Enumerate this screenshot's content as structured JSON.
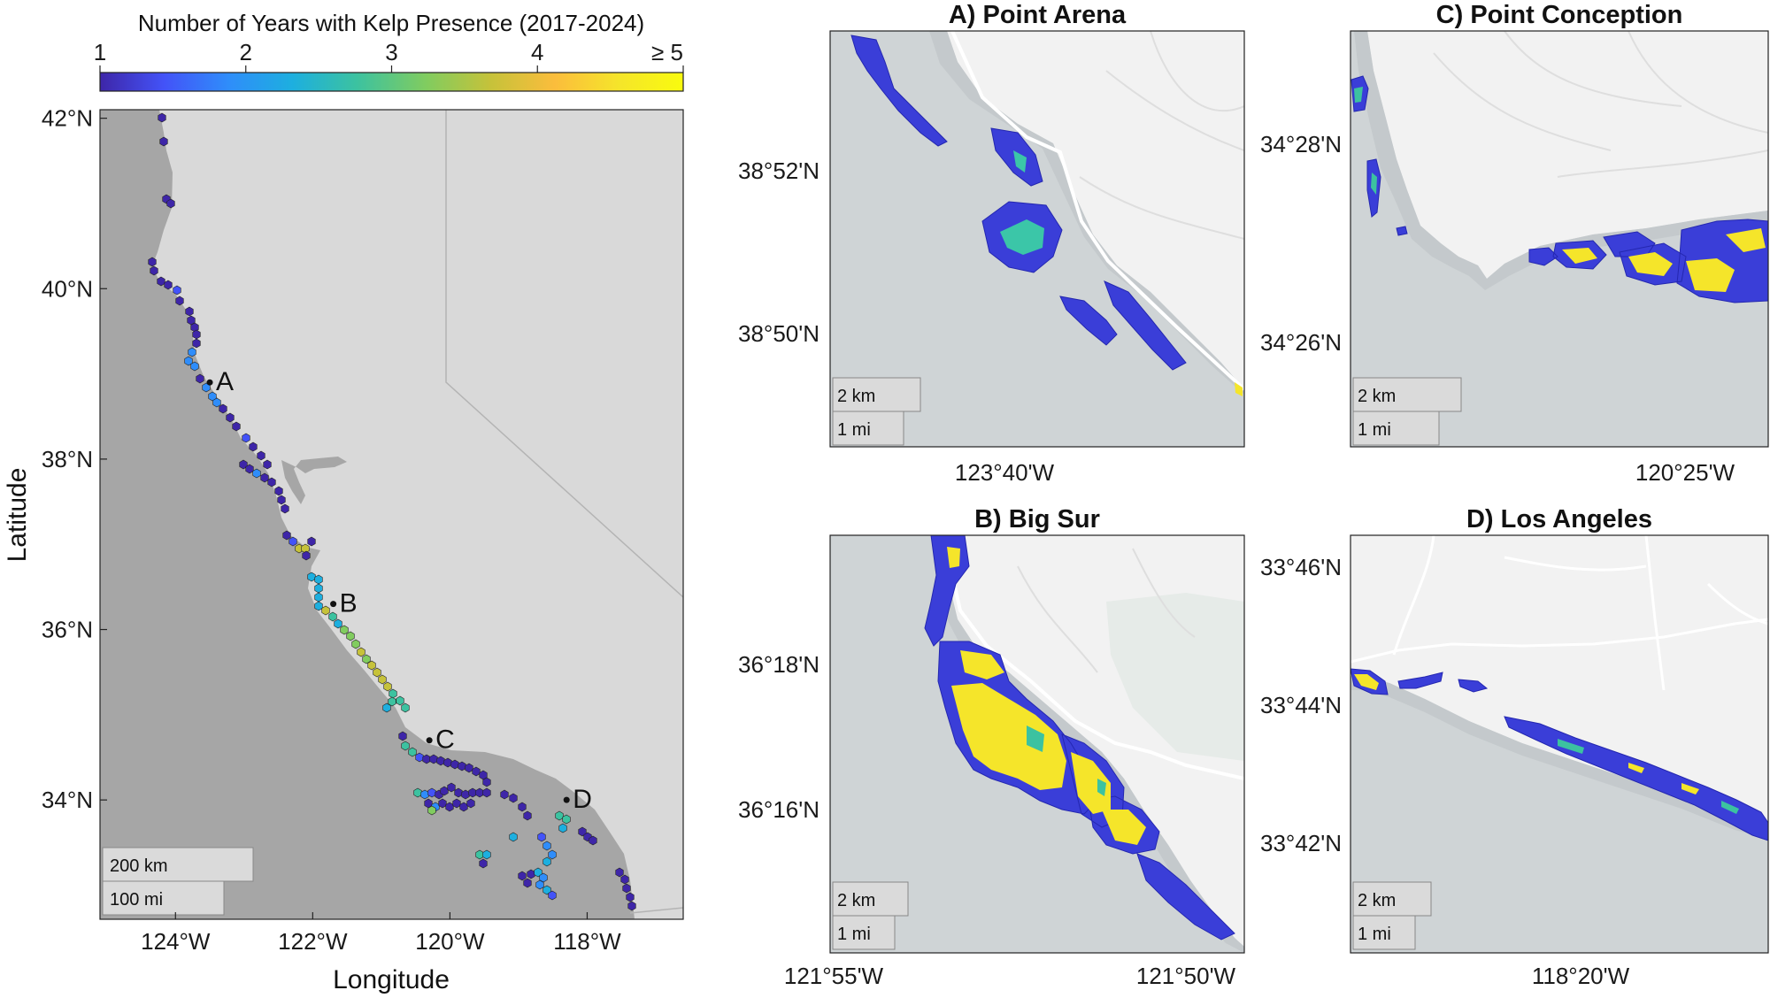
{
  "colorbar": {
    "title": "Number of Years with Kelp Presence (2017-2024)",
    "ticks": [
      {
        "value": 1,
        "label": "1"
      },
      {
        "value": 2,
        "label": "2"
      },
      {
        "value": 3,
        "label": "3"
      },
      {
        "value": 4,
        "label": "4"
      },
      {
        "value": 5,
        "label": "≥ 5"
      }
    ],
    "colors": [
      "#3e26a8",
      "#4353f8",
      "#2f8dfa",
      "#1dafdf",
      "#3cc2a0",
      "#81cc5f",
      "#c6c23a",
      "#fbbd3c",
      "#f5e52a",
      "#f9fb0e"
    ]
  },
  "overview": {
    "xlabel": "Longitude",
    "ylabel": "Latitude",
    "x_ticks": [
      "124°W",
      "122°W",
      "120°W",
      "118°W"
    ],
    "y_ticks": [
      "42°N",
      "40°N",
      "38°N",
      "36°N",
      "34°N"
    ],
    "sites": [
      {
        "label": "A",
        "lon": -123.5,
        "lat": 38.9
      },
      {
        "label": "B",
        "lon": -121.7,
        "lat": 36.3
      },
      {
        "label": "C",
        "lon": -120.3,
        "lat": 34.7
      },
      {
        "label": "D",
        "lon": -118.3,
        "lat": 34.0
      }
    ],
    "scalebar": [
      "200 km",
      "100 mi"
    ]
  },
  "panels": [
    {
      "id": "A",
      "title": "A) Point Arena",
      "y_ticks": [
        "38°52'N",
        "38°50'N"
      ],
      "x_ticks": [
        "123°40'W"
      ],
      "scalebar": [
        "2 km",
        "1 mi"
      ]
    },
    {
      "id": "C",
      "title": "C) Point Conception",
      "y_ticks": [
        "34°28'N",
        "34°26'N"
      ],
      "x_ticks": [
        "120°25'W"
      ],
      "scalebar": [
        "2 km",
        "1 mi"
      ]
    },
    {
      "id": "B",
      "title": "B) Big Sur",
      "y_ticks": [
        "36°18'N",
        "36°16'N"
      ],
      "x_ticks": [
        "121°55'W",
        "121°50'W"
      ],
      "scalebar": [
        "2 km",
        "1 mi"
      ]
    },
    {
      "id": "D",
      "title": "D) Los Angeles",
      "y_ticks": [
        "33°46'N",
        "33°44'N",
        "33°42'N"
      ],
      "x_ticks": [
        "118°20'W"
      ],
      "scalebar": [
        "2 km",
        "1 mi"
      ]
    }
  ]
}
